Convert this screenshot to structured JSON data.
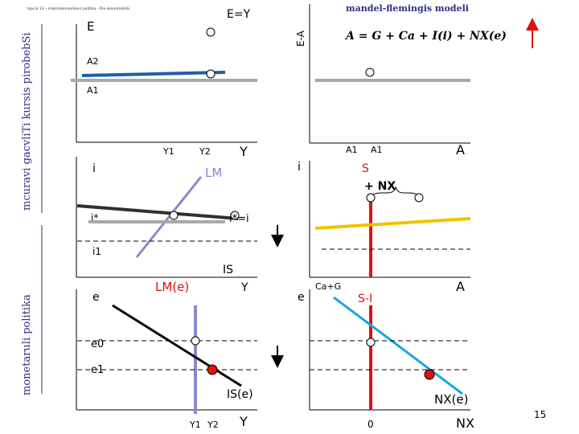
{
  "slide": {
    "header_small": "lepcia 13 – makroekonomikuri politika - Ria ekonomikaSi",
    "title": "mandel-flemingis modeli",
    "page_number": "15"
  },
  "sidebar": {
    "course_title": "mcuravi gacvliTi kursis pirobebSi",
    "topic": "monetaruli politika"
  },
  "panels": {
    "goods_market": {
      "y_axis": "E",
      "line_label": "E=Y",
      "level_2": "A2",
      "level_1": "A1",
      "x_tick_1": "Y1",
      "x_tick_2": "Y2",
      "x_axis": "Y"
    },
    "demand_equation": {
      "y_axis": "E-A",
      "formula": "A = G + Ca + I(i) + NX(e)",
      "x_tick_1": "A1",
      "x_tick_2": "A1",
      "x_axis": "A"
    },
    "money_market": {
      "y_axis": "i",
      "lm_label": "LM",
      "i_star": "i*",
      "i_1": "i1",
      "is_label": "IS",
      "x_axis": "Y"
    },
    "saving_market": {
      "y_axis": "i",
      "s_label": "S",
      "nx_label": "+ NX",
      "eq_label": "i*=i",
      "x_axis": "A"
    },
    "exchange_market": {
      "y_axis": "e",
      "lm_label": "LM(e)",
      "e0": "e0",
      "e1": "e1",
      "is_label": "IS(e)",
      "x_tick_1": "Y1",
      "x_tick_2": "Y2",
      "x_axis": "Y"
    },
    "net_exports": {
      "y_axis": "e",
      "y_axis_extra": "Ca+G",
      "si_label": "S-I",
      "nx_label": "NX(e)",
      "zero": "0",
      "x_axis": "NX",
      "a_label": "A"
    }
  },
  "colors": {
    "axis": "#000000",
    "blue_line": "#1f5fa8",
    "gray_line": "#a8a8a8",
    "lm_line": "#8888cc",
    "red": "#e01010",
    "yellow": "#f2c200",
    "cyan": "#19a7e0",
    "sidebar_text": "#2e2e80"
  }
}
